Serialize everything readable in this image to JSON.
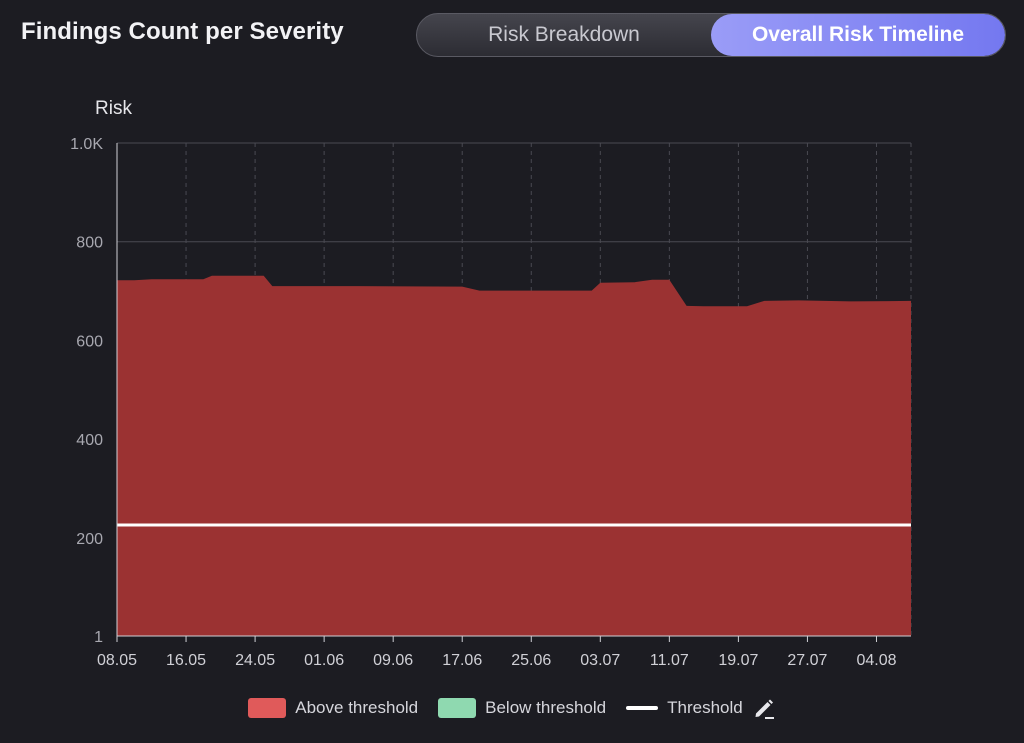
{
  "header": {
    "title": "Findings Count per Severity",
    "tabs": [
      {
        "label": "Risk Breakdown",
        "active": false
      },
      {
        "label": "Overall Risk Timeline",
        "active": true
      }
    ]
  },
  "colors": {
    "above": "#9b3232",
    "above_legend": "#e05a5a",
    "below_legend": "#8fd9b0",
    "threshold": "#ffffff",
    "grid": "#4a4a52",
    "axis_text": "#a8a8b0"
  },
  "legend": {
    "above_label": "Above threshold",
    "below_label": "Below threshold",
    "threshold_label": "Threshold",
    "edit_icon": "pencil-icon"
  },
  "chart_data": {
    "type": "area",
    "ylabel": "Risk",
    "xlabel": "",
    "ylim": [
      1,
      1000
    ],
    "yticks": [
      {
        "value": 1,
        "label": "1"
      },
      {
        "value": 200,
        "label": "200"
      },
      {
        "value": 400,
        "label": "400"
      },
      {
        "value": 600,
        "label": "600"
      },
      {
        "value": 800,
        "label": "800"
      },
      {
        "value": 1000,
        "label": "1.0K"
      }
    ],
    "xlim": [
      "2024-05-08",
      "2024-08-08"
    ],
    "xticks": [
      {
        "date": "2024-05-08",
        "label": "08.05"
      },
      {
        "date": "2024-05-16",
        "label": "16.05"
      },
      {
        "date": "2024-05-24",
        "label": "24.05"
      },
      {
        "date": "2024-06-01",
        "label": "01.06"
      },
      {
        "date": "2024-06-09",
        "label": "09.06"
      },
      {
        "date": "2024-06-17",
        "label": "17.06"
      },
      {
        "date": "2024-06-25",
        "label": "25.06"
      },
      {
        "date": "2024-07-03",
        "label": "03.07"
      },
      {
        "date": "2024-07-11",
        "label": "11.07"
      },
      {
        "date": "2024-07-19",
        "label": "19.07"
      },
      {
        "date": "2024-07-27",
        "label": "27.07"
      },
      {
        "date": "2024-08-04",
        "label": "04.08"
      }
    ],
    "threshold": 226,
    "grid": true,
    "legend_position": "bottom",
    "series": [
      {
        "name": "Above threshold",
        "points": [
          {
            "x": "2024-05-08",
            "y": 722
          },
          {
            "x": "2024-05-10",
            "y": 722
          },
          {
            "x": "2024-05-12",
            "y": 724
          },
          {
            "x": "2024-05-18",
            "y": 724
          },
          {
            "x": "2024-05-19",
            "y": 731
          },
          {
            "x": "2024-05-25",
            "y": 731
          },
          {
            "x": "2024-05-26",
            "y": 710
          },
          {
            "x": "2024-06-05",
            "y": 710
          },
          {
            "x": "2024-06-17",
            "y": 709
          },
          {
            "x": "2024-06-19",
            "y": 701
          },
          {
            "x": "2024-07-02",
            "y": 701
          },
          {
            "x": "2024-07-03",
            "y": 717
          },
          {
            "x": "2024-07-07",
            "y": 718
          },
          {
            "x": "2024-07-09",
            "y": 723
          },
          {
            "x": "2024-07-11",
            "y": 723
          },
          {
            "x": "2024-07-13",
            "y": 670
          },
          {
            "x": "2024-07-15",
            "y": 669
          },
          {
            "x": "2024-07-20",
            "y": 669
          },
          {
            "x": "2024-07-22",
            "y": 680
          },
          {
            "x": "2024-07-26",
            "y": 681
          },
          {
            "x": "2024-08-01",
            "y": 679
          },
          {
            "x": "2024-08-08",
            "y": 680
          }
        ]
      }
    ]
  }
}
